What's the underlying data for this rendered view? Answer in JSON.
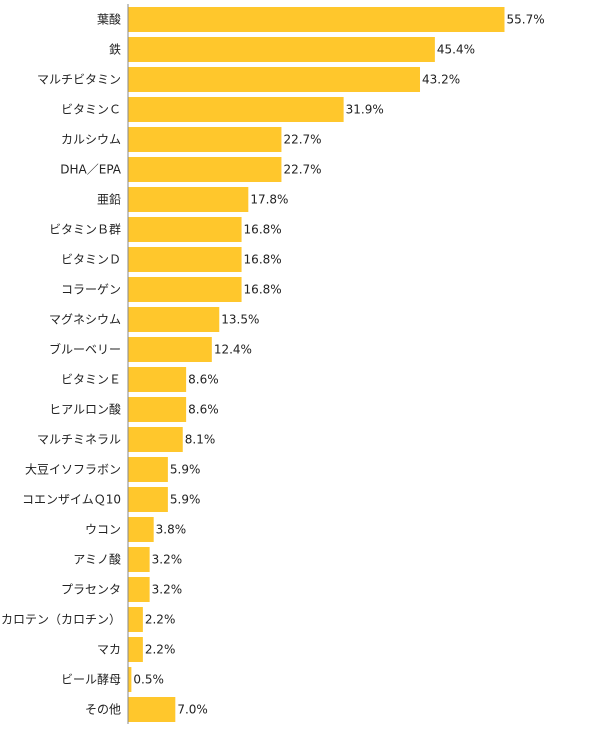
{
  "chart_data": {
    "type": "bar",
    "orientation": "horizontal",
    "categories": [
      "葉酸",
      "鉄",
      "マルチビタミン",
      "ビタミンＣ",
      "カルシウム",
      "DHA／EPA",
      "亜鉛",
      "ビタミンＢ群",
      "ビタミンＤ",
      "コラーゲン",
      "マグネシウム",
      "ブルーベリー",
      "ビタミンＥ",
      "ヒアルロン酸",
      "マルチミネラル",
      "大豆イソフラボン",
      "コエンザイムＱ10",
      "ウコン",
      "アミノ酸",
      "プラセンタ",
      "カロテン（カロチン）",
      "マカ",
      "ビール酵母",
      "その他"
    ],
    "values": [
      55.7,
      45.4,
      43.2,
      31.9,
      22.7,
      22.7,
      17.8,
      16.8,
      16.8,
      16.8,
      13.5,
      12.4,
      8.6,
      8.6,
      8.1,
      5.9,
      5.9,
      3.8,
      3.2,
      3.2,
      2.2,
      2.2,
      0.5,
      7.0
    ],
    "value_labels": [
      "55.7%",
      "45.4%",
      "43.2%",
      "31.9%",
      "22.7%",
      "22.7%",
      "17.8%",
      "16.8%",
      "16.8%",
      "16.8%",
      "13.5%",
      "12.4%",
      "8.6%",
      "8.6%",
      "8.1%",
      "5.9%",
      "5.9%",
      "3.8%",
      "3.2%",
      "3.2%",
      "2.2%",
      "2.2%",
      "0.5%",
      "7.0%"
    ],
    "xlim": [
      0,
      100
    ],
    "bar_color": "#FFC72C",
    "axis_color": "#888888",
    "text_color": "#222222",
    "grid": false,
    "title": "",
    "xlabel": "",
    "ylabel": ""
  }
}
